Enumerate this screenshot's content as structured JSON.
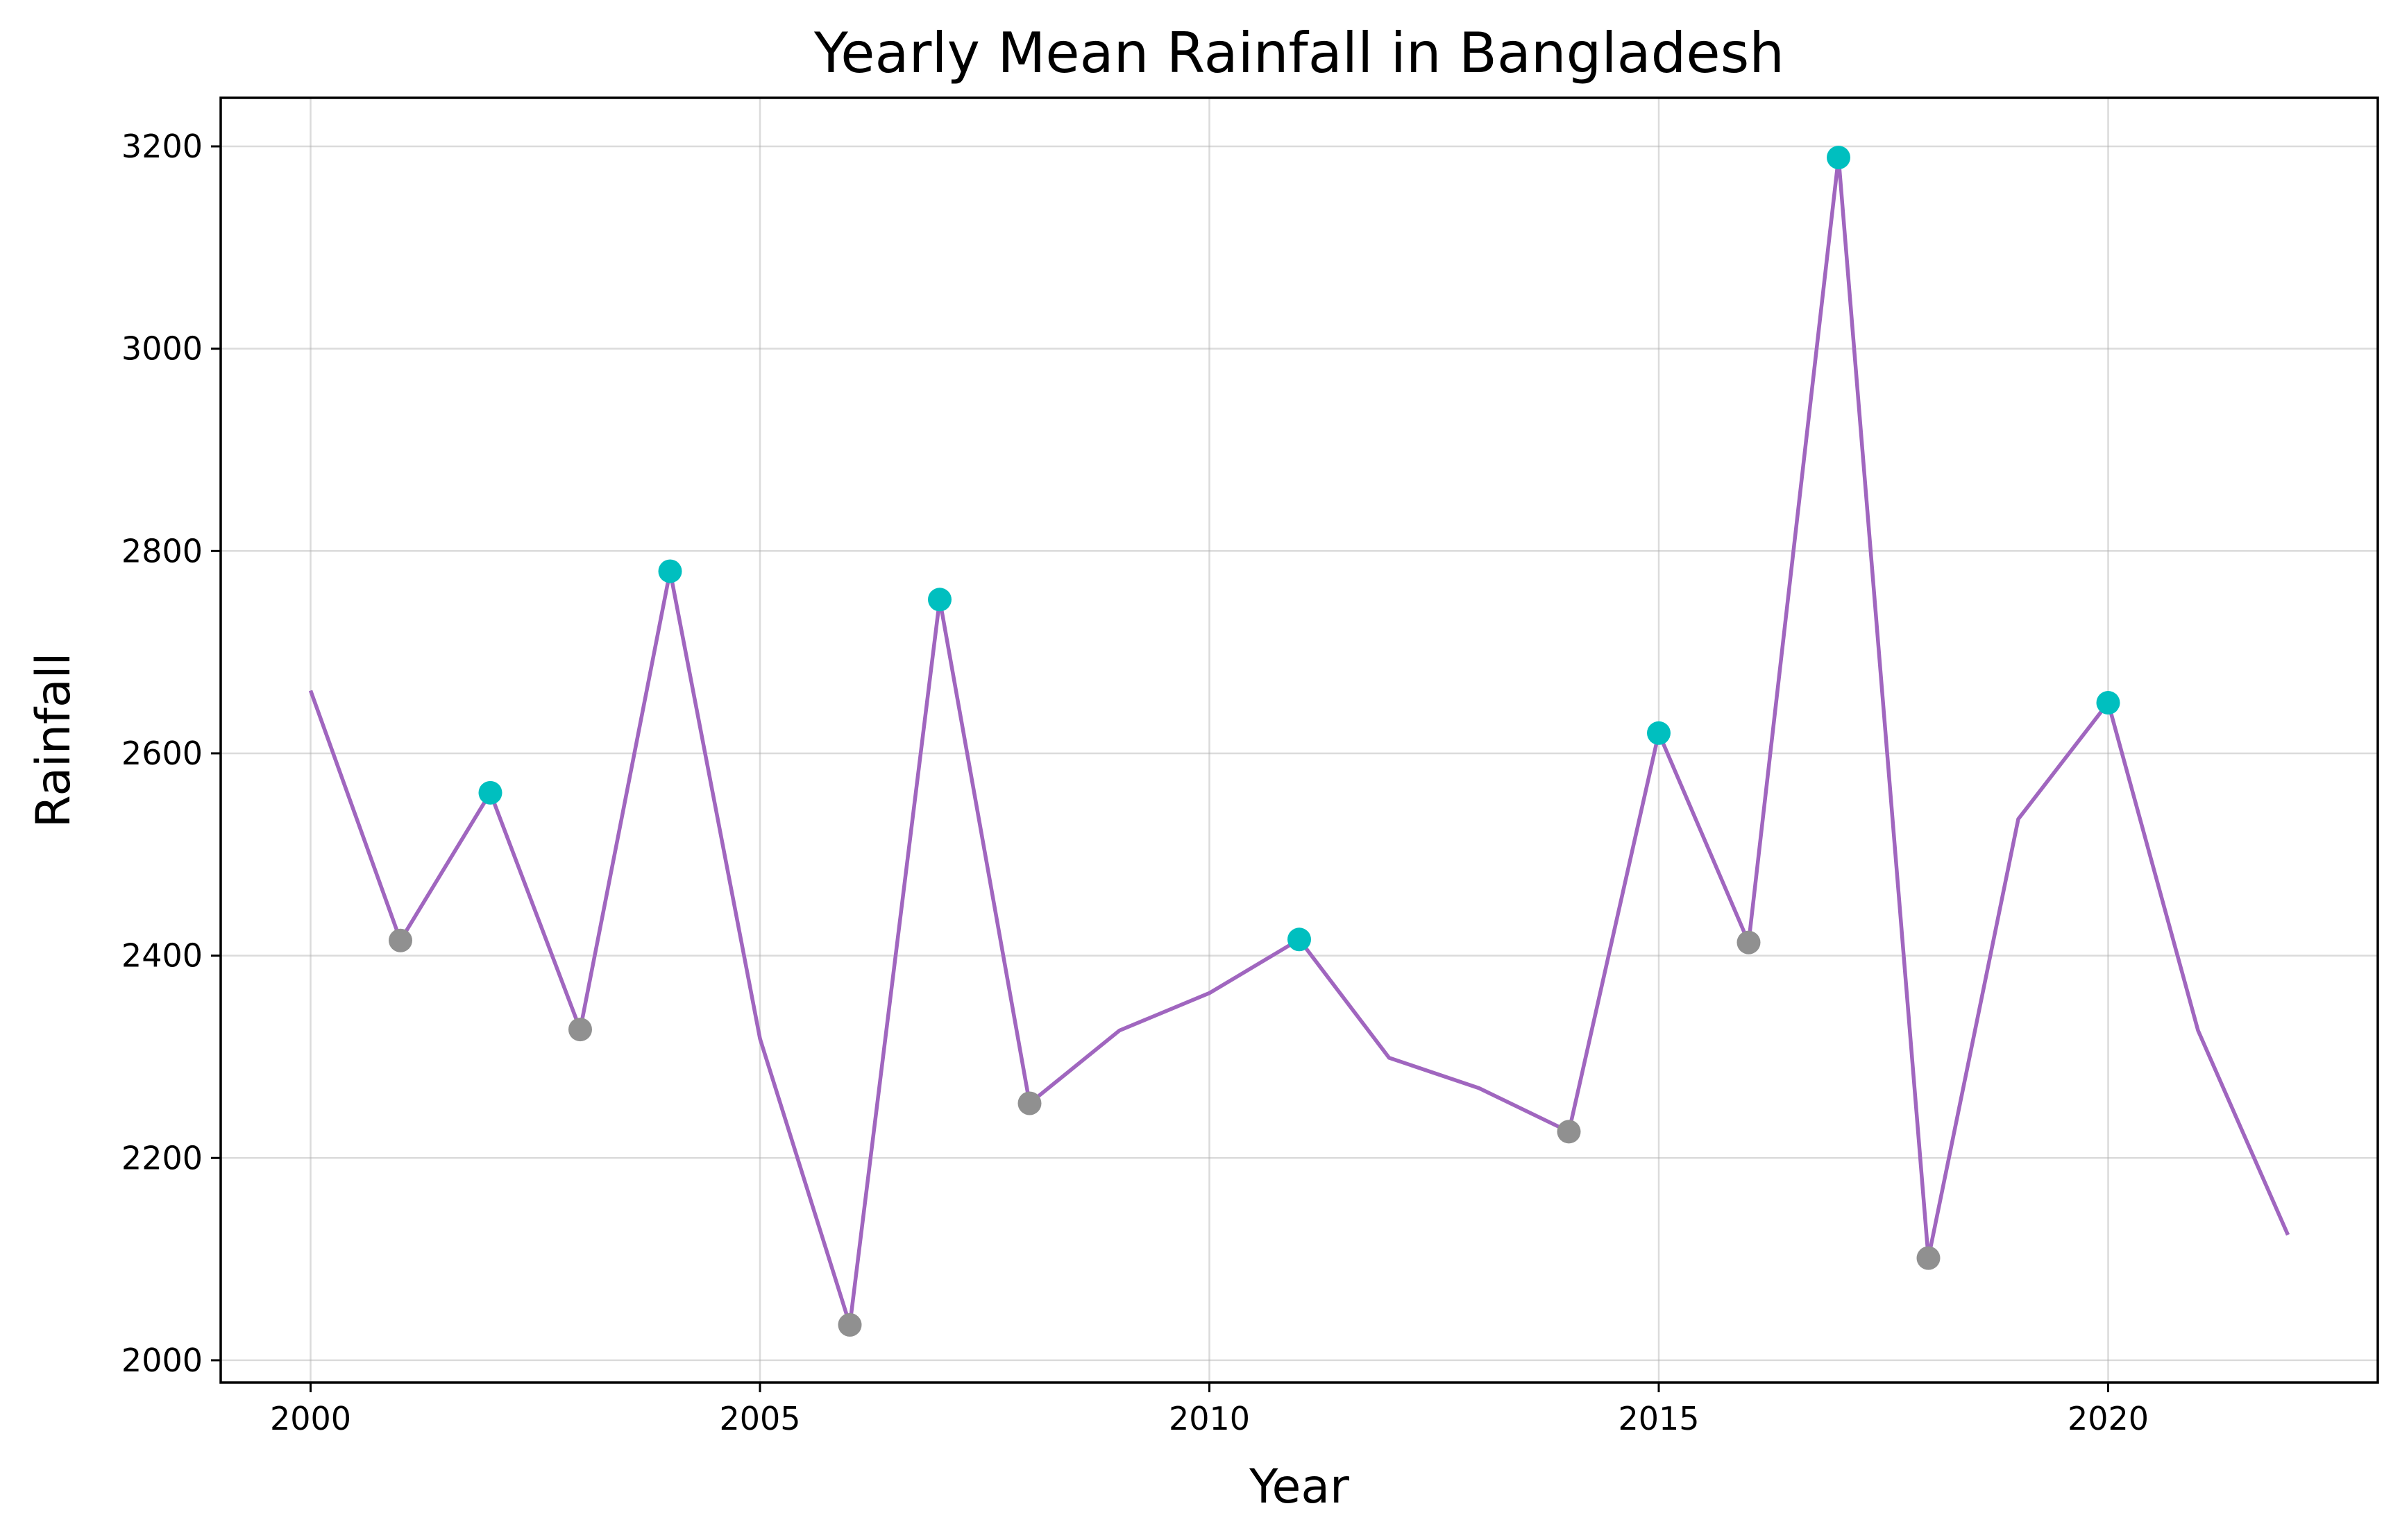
{
  "chart_data": {
    "type": "line",
    "title": "Yearly Mean Rainfall in Bangladesh",
    "xlabel": "Year",
    "ylabel": "Rainfall",
    "xlim": [
      1999,
      2023
    ],
    "ylim": [
      1978,
      3248
    ],
    "x_ticks": [
      2000,
      2005,
      2010,
      2015,
      2020
    ],
    "y_ticks": [
      2000,
      2200,
      2400,
      2600,
      2800,
      3000,
      3200
    ],
    "grid": true,
    "legend": "none",
    "line_color": "#a066bf",
    "x": [
      2000,
      2001,
      2002,
      2003,
      2004,
      2005,
      2006,
      2007,
      2008,
      2009,
      2010,
      2011,
      2012,
      2013,
      2014,
      2015,
      2016,
      2017,
      2018,
      2019,
      2020,
      2021,
      2022
    ],
    "values": [
      2662,
      2415,
      2561,
      2327,
      2780,
      2318,
      2035,
      2752,
      2254,
      2326,
      2363,
      2416,
      2299,
      2269,
      2226,
      2620,
      2413,
      3189,
      2101,
      2535,
      2650,
      2326,
      2124
    ],
    "markers": {
      "peaks": {
        "color": "#00bfbf",
        "years": [
          2002,
          2004,
          2007,
          2011,
          2015,
          2017,
          2020
        ]
      },
      "troughs": {
        "color": "#909090",
        "years": [
          2001,
          2003,
          2006,
          2008,
          2014,
          2016,
          2018
        ]
      }
    }
  }
}
